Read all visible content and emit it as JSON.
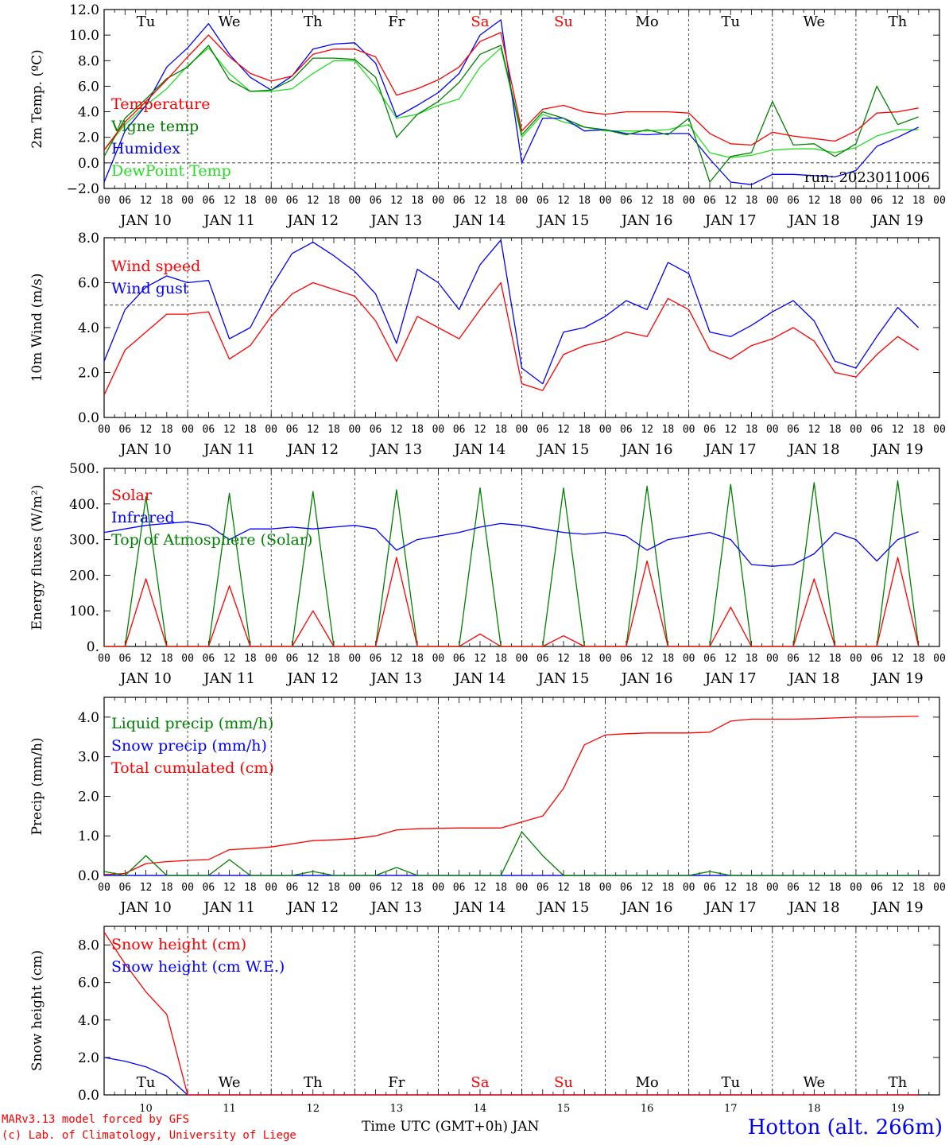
{
  "colors": {
    "red": "#ff0000",
    "green": "#008000",
    "blue": "#0000ff",
    "lightgreen": "#22dd22",
    "black": "#000000"
  },
  "days": {
    "names": [
      "Tu",
      "We",
      "Th",
      "Fr",
      "Sa",
      "Su",
      "Mo",
      "Tu",
      "We",
      "Th"
    ],
    "weekend_index": [
      4,
      5
    ],
    "dates": [
      "JAN 10",
      "JAN 11",
      "JAN 12",
      "JAN 13",
      "JAN 14",
      "JAN 15",
      "JAN 16",
      "JAN 17",
      "JAN 18",
      "JAN 19"
    ],
    "bottom_dates": [
      "10",
      "11",
      "12",
      "13",
      "14",
      "15",
      "16",
      "17",
      "18",
      "19"
    ],
    "hour_ticks": [
      "00",
      "06",
      "12",
      "18"
    ],
    "final_tick": "00"
  },
  "chart_data": [
    {
      "type": "line",
      "ylabel": "2m Temp. (ºC)",
      "ylim": [
        -2,
        12
      ],
      "yticks": [
        "−2.0",
        "0.0",
        "2.0",
        "4.0",
        "6.0",
        "8.0",
        "10.0",
        "12.0"
      ],
      "reference_line": 0,
      "x_hours": [
        0,
        6,
        12,
        18,
        24,
        30,
        36,
        42,
        48,
        54,
        60,
        66,
        72,
        78,
        84,
        90,
        96,
        102,
        108,
        114,
        120,
        126,
        132,
        138,
        144,
        150,
        156,
        162,
        168,
        174,
        180,
        186,
        192,
        198,
        204,
        210,
        216,
        222,
        228,
        234
      ],
      "annotation": "run: 2023011006",
      "series": [
        {
          "name": "Temperature",
          "color": "red",
          "values": [
            1,
            3.2,
            4.8,
            6.5,
            8.3,
            10,
            8.3,
            7,
            6.4,
            6.8,
            8.5,
            8.9,
            8.9,
            8.3,
            5.3,
            5.8,
            6.5,
            7.5,
            9.5,
            10.2,
            2.5,
            4.2,
            4.5,
            4,
            3.8,
            4,
            4,
            4,
            3.9,
            2.3,
            1.5,
            1.4,
            2.4,
            2.1,
            1.9,
            1.7,
            2.5,
            3.9,
            4,
            4.3
          ]
        },
        {
          "name": "Vigne temp",
          "color": "green",
          "values": [
            0.5,
            3.5,
            5,
            6.6,
            7.5,
            9.2,
            6.5,
            5.6,
            5.7,
            6.5,
            8.2,
            8.2,
            8.1,
            6.7,
            2,
            3.8,
            4.8,
            6.3,
            8.5,
            9.2,
            2.2,
            4,
            3.5,
            2.8,
            2.6,
            2.2,
            2.6,
            2.2,
            3.5,
            -1.5,
            0.5,
            0.8,
            4.8,
            1.4,
            1.5,
            0.5,
            1.5,
            6,
            3,
            3.6
          ]
        },
        {
          "name": "Humidex",
          "color": "blue",
          "values": [
            -1.5,
            2.5,
            4.5,
            7.5,
            9,
            10.9,
            8.5,
            6.7,
            5.7,
            6.8,
            8.9,
            9.3,
            9.4,
            7.8,
            3.6,
            4.5,
            5.5,
            7,
            10,
            11.2,
            0,
            3.5,
            3.5,
            2.5,
            2.6,
            2.3,
            2.2,
            2.3,
            2.3,
            0.3,
            -1.5,
            -1.7,
            -0.9,
            -0.9,
            -1,
            -1.1,
            -0.6,
            1.3,
            2,
            2.8
          ]
        },
        {
          "name": "DewPoint Temp",
          "color": "lightgreen",
          "values": [
            1,
            3,
            4.5,
            5.8,
            7.6,
            9,
            7,
            5.6,
            5.6,
            5.8,
            7,
            8,
            8,
            6,
            3.5,
            3.8,
            4.5,
            5,
            7.5,
            9,
            2,
            3.8,
            3.2,
            2.8,
            2.5,
            2.5,
            2.5,
            2.6,
            3,
            0.8,
            0.4,
            0.6,
            1,
            1.1,
            1.1,
            0.8,
            1.2,
            2.1,
            2.6,
            2.6
          ]
        }
      ]
    },
    {
      "type": "line",
      "ylabel": "10m Wind (m/s)",
      "ylim": [
        0,
        8
      ],
      "yticks": [
        "0.0",
        "2.0",
        "4.0",
        "6.0",
        "8.0"
      ],
      "reference_line": 5,
      "x_hours": [
        0,
        6,
        12,
        18,
        24,
        30,
        36,
        42,
        48,
        54,
        60,
        66,
        72,
        78,
        84,
        90,
        96,
        102,
        108,
        114,
        120,
        126,
        132,
        138,
        144,
        150,
        156,
        162,
        168,
        174,
        180,
        186,
        192,
        198,
        204,
        210,
        216,
        222,
        228,
        234
      ],
      "series": [
        {
          "name": "Wind speed",
          "color": "red",
          "values": [
            1,
            3,
            3.8,
            4.6,
            4.6,
            4.7,
            2.6,
            3.2,
            4.5,
            5.5,
            6,
            5.7,
            5.4,
            4.3,
            2.5,
            4.5,
            4,
            3.5,
            4.8,
            6,
            1.5,
            1.2,
            2.8,
            3.2,
            3.4,
            3.8,
            3.6,
            5.3,
            4.8,
            3,
            2.6,
            3.2,
            3.5,
            4,
            3.4,
            2,
            1.8,
            2.8,
            3.6,
            3
          ]
        },
        {
          "name": "Wind gust",
          "color": "blue",
          "values": [
            2.5,
            4.8,
            5.8,
            6.3,
            6,
            6.1,
            3.5,
            4,
            5.8,
            7.3,
            7.8,
            7.2,
            6.5,
            5.5,
            3.3,
            6.6,
            6,
            4.8,
            6.8,
            7.9,
            2.2,
            1.5,
            3.8,
            4,
            4.5,
            5.2,
            4.8,
            6.9,
            6.4,
            3.8,
            3.6,
            4.1,
            4.7,
            5.2,
            4.3,
            2.5,
            2.2,
            3.6,
            4.9,
            4
          ]
        }
      ]
    },
    {
      "type": "line",
      "ylabel": "Energy fluxes (W/m²)",
      "ylim": [
        0,
        500
      ],
      "yticks": [
        "0.",
        "100.",
        "200.",
        "300.",
        "400.",
        "500."
      ],
      "x_hours": [
        0,
        6,
        12,
        18,
        24,
        30,
        36,
        42,
        48,
        54,
        60,
        66,
        72,
        78,
        84,
        90,
        96,
        102,
        108,
        114,
        120,
        126,
        132,
        138,
        144,
        150,
        156,
        162,
        168,
        174,
        180,
        186,
        192,
        198,
        204,
        210,
        216,
        222,
        228,
        234
      ],
      "series": [
        {
          "name": "Solar",
          "color": "red",
          "values": [
            0,
            0,
            190,
            0,
            0,
            0,
            170,
            0,
            0,
            0,
            100,
            0,
            0,
            0,
            250,
            0,
            0,
            0,
            35,
            0,
            0,
            0,
            30,
            0,
            0,
            0,
            240,
            0,
            0,
            0,
            110,
            0,
            0,
            0,
            190,
            0,
            0,
            0,
            250,
            0
          ]
        },
        {
          "name": "Infrared",
          "color": "blue",
          "values": [
            320,
            330,
            340,
            345,
            350,
            340,
            300,
            330,
            330,
            335,
            330,
            335,
            340,
            330,
            270,
            300,
            310,
            320,
            335,
            345,
            340,
            330,
            320,
            315,
            320,
            310,
            270,
            300,
            310,
            320,
            300,
            230,
            225,
            230,
            260,
            320,
            300,
            240,
            300,
            322
          ]
        },
        {
          "name": "Top of Atmosphere (Solar)",
          "color": "green",
          "values": [
            0,
            0,
            420,
            0,
            0,
            0,
            430,
            0,
            0,
            0,
            435,
            0,
            0,
            0,
            440,
            0,
            0,
            0,
            445,
            0,
            0,
            0,
            445,
            0,
            0,
            0,
            450,
            0,
            0,
            0,
            455,
            0,
            0,
            0,
            460,
            0,
            0,
            0,
            465,
            0
          ]
        }
      ]
    },
    {
      "type": "line",
      "ylabel": "Precip (mm/h)",
      "ylim": [
        0,
        4.5
      ],
      "yticks": [
        "0.0",
        "1.0",
        "2.0",
        "3.0",
        "4.0"
      ],
      "x_hours": [
        0,
        6,
        12,
        18,
        24,
        30,
        36,
        42,
        48,
        54,
        60,
        66,
        72,
        78,
        84,
        90,
        96,
        102,
        108,
        114,
        120,
        126,
        132,
        138,
        144,
        150,
        156,
        162,
        168,
        174,
        180,
        186,
        192,
        198,
        204,
        210,
        216,
        222,
        228,
        234
      ],
      "series": [
        {
          "name": "Liquid precip (mm/h)",
          "color": "green",
          "values": [
            0.1,
            0,
            0.5,
            0,
            0,
            0,
            0.4,
            0,
            0,
            0,
            0.1,
            0,
            0,
            0,
            0.2,
            0,
            0,
            0,
            0,
            0,
            1.1,
            0.5,
            0,
            0,
            0,
            0,
            0,
            0,
            0,
            0.1,
            0,
            0,
            0,
            0,
            0,
            0,
            0,
            0,
            0,
            0
          ]
        },
        {
          "name": "Snow precip (mm/h)",
          "color": "blue",
          "values": [
            0,
            0,
            0,
            0,
            0,
            0,
            0,
            0,
            0,
            0,
            0,
            0,
            0,
            0,
            0,
            0,
            0,
            0,
            0,
            0,
            0,
            0,
            0,
            0,
            0,
            0,
            0,
            0,
            0,
            0,
            0,
            0,
            0,
            0,
            0,
            0,
            0,
            0,
            0,
            0
          ]
        },
        {
          "name": "Total cumulated (cm)",
          "color": "red",
          "values": [
            0.02,
            0.05,
            0.3,
            0.35,
            0.38,
            0.4,
            0.65,
            0.68,
            0.72,
            0.8,
            0.88,
            0.9,
            0.93,
            1,
            1.15,
            1.18,
            1.19,
            1.2,
            1.2,
            1.2,
            1.35,
            1.5,
            2.2,
            3.3,
            3.55,
            3.58,
            3.6,
            3.6,
            3.6,
            3.62,
            3.9,
            3.95,
            3.95,
            3.95,
            3.96,
            3.98,
            4,
            4,
            4.01,
            4.02
          ]
        }
      ]
    },
    {
      "type": "line",
      "ylabel": "Snow height (cm)",
      "ylim": [
        0,
        9
      ],
      "yticks": [
        "0.0",
        "2.0",
        "4.0",
        "6.0",
        "8.0"
      ],
      "x_hours": [
        0,
        6,
        12,
        18,
        24,
        30,
        36,
        42,
        48,
        54,
        60,
        66,
        72,
        78,
        84,
        90,
        96,
        102,
        108,
        114,
        120,
        126,
        132,
        138,
        144,
        150,
        156,
        162,
        168,
        174,
        180,
        186,
        192,
        198,
        204,
        210,
        216,
        222,
        228,
        234
      ],
      "series": [
        {
          "name": "Snow height (cm)",
          "color": "red",
          "values": [
            8.7,
            7,
            5.5,
            4.3,
            0,
            0,
            0,
            0,
            0,
            0,
            0,
            0,
            0,
            0,
            0,
            0,
            0,
            0,
            0,
            0,
            0,
            0,
            0,
            0,
            0,
            0,
            0,
            0,
            0,
            0,
            0,
            0,
            0,
            0,
            0,
            0,
            0,
            0,
            0,
            0
          ]
        },
        {
          "name": "Snow height (cm W.E.)",
          "color": "blue",
          "values": [
            2,
            1.8,
            1.5,
            1,
            0,
            0,
            0,
            0,
            0,
            0,
            0,
            0,
            0,
            0,
            0,
            0,
            0,
            0,
            0,
            0,
            0,
            0,
            0,
            0,
            0,
            0,
            0,
            0,
            0,
            0,
            0,
            0,
            0,
            0,
            0,
            0,
            0,
            0,
            0,
            0
          ]
        }
      ]
    }
  ],
  "footer": {
    "xlabel": "Time UTC (GMT+0h) JAN",
    "credit1": "MARv3.13 model forced by GFS",
    "credit2": "(c) Lab. of Climatology, University of Liege",
    "station": "Hotton (alt. 266m)"
  }
}
